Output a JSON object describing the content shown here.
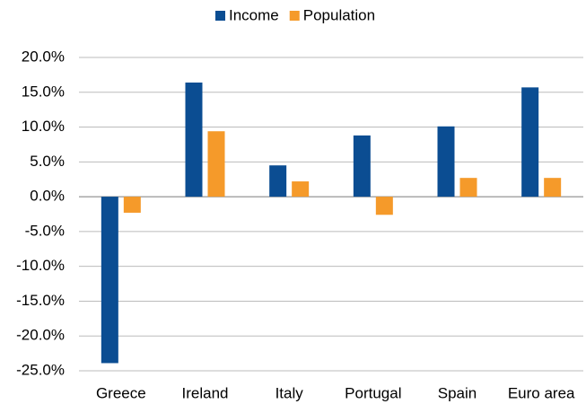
{
  "chart_data": {
    "type": "bar",
    "categories": [
      "Greece",
      "Ireland",
      "Italy",
      "Portugal",
      "Spain",
      "Euro area"
    ],
    "series": [
      {
        "name": "Income",
        "color": "#0b4d92",
        "values": [
          -23.9,
          16.4,
          4.5,
          8.8,
          10.1,
          15.7
        ]
      },
      {
        "name": "Population",
        "color": "#f59a2a",
        "values": [
          -2.3,
          9.4,
          2.2,
          -2.6,
          2.7,
          2.7
        ]
      }
    ],
    "ylim": [
      -25,
      20
    ],
    "yticks": [
      {
        "value": -25,
        "label": "-25.0%"
      },
      {
        "value": -20,
        "label": "-20.0%"
      },
      {
        "value": -15,
        "label": "-15.0%"
      },
      {
        "value": -10,
        "label": "-10.0%"
      },
      {
        "value": -5,
        "label": "-5.0%"
      },
      {
        "value": 0,
        "label": "0.0%"
      },
      {
        "value": 5,
        "label": "5.0%"
      },
      {
        "value": 10,
        "label": "10.0%"
      },
      {
        "value": 15,
        "label": "15.0%"
      },
      {
        "value": 20,
        "label": "20.0%"
      }
    ],
    "grid": true,
    "legend": "top"
  }
}
